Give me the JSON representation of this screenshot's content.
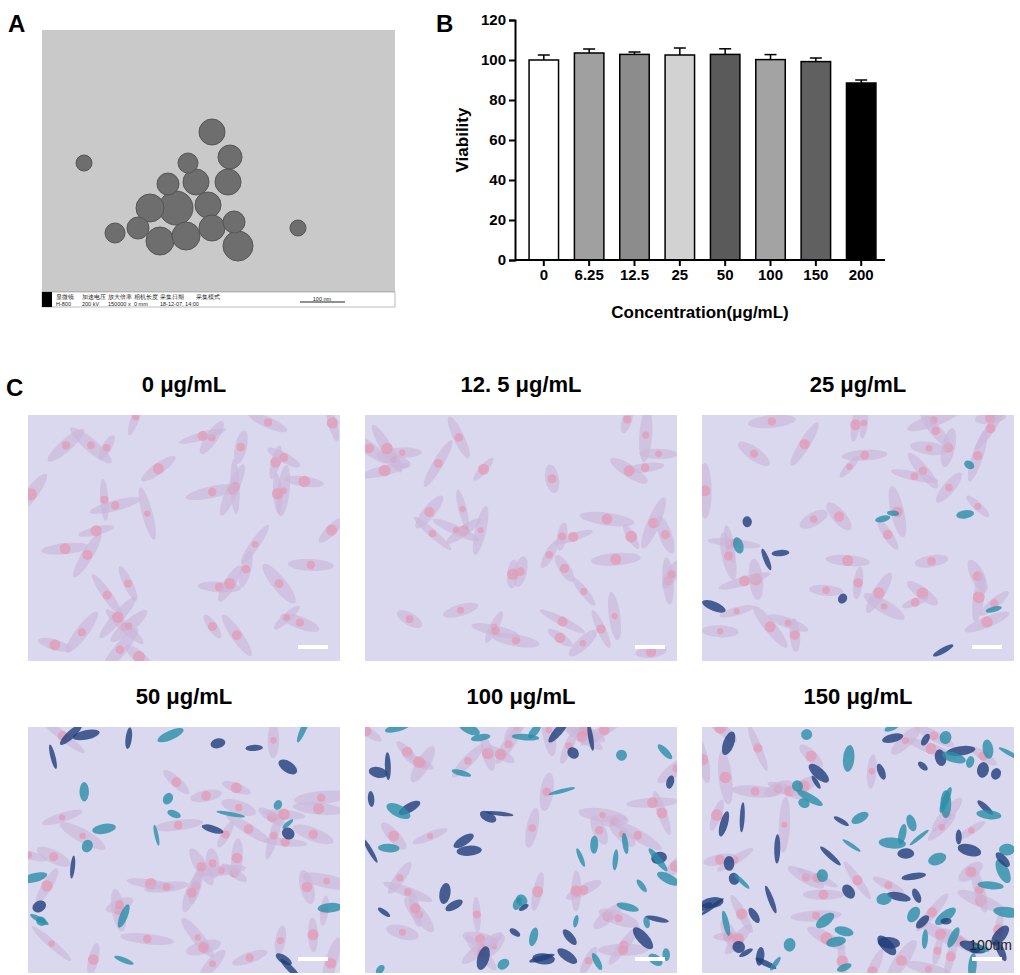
{
  "chart_data": {
    "type": "bar",
    "x_label": "Concentration(μg/mL)",
    "y_label": "Viability",
    "categories": [
      "0",
      "6.25",
      "12.5",
      "25",
      "50",
      "100",
      "150",
      "200"
    ],
    "values": [
      100,
      103.5,
      102.8,
      102.5,
      102.8,
      100.2,
      99.2,
      88.5
    ],
    "errors": [
      2.5,
      2,
      1.2,
      3.5,
      2.8,
      2.5,
      1.8,
      1.5
    ],
    "colors": [
      "#ffffff",
      "#a0a0a0",
      "#8c8c8c",
      "#d2d2d2",
      "#5a5a5a",
      "#a3a3a3",
      "#606060",
      "#000000"
    ],
    "ylim": [
      0,
      120
    ],
    "yticks": [
      0,
      20,
      40,
      60,
      80,
      100,
      120
    ],
    "grid": false
  },
  "figure": {
    "panel_labels": [
      "A",
      "B",
      "C"
    ],
    "tem": {
      "header_row": [
        "显微镜",
        "加速电压",
        "放大倍率",
        "相机长度",
        "采集日期",
        "采集模式"
      ],
      "value_row": [
        "H-800",
        "200 kV",
        "150000 x",
        "0 mm",
        "18-12-07, 14:00"
      ],
      "scale_label": "100 nm"
    },
    "micrographs": [
      {
        "title": "0 μg/mL"
      },
      {
        "title": "12. 5 μg/mL"
      },
      {
        "title": "25 μg/mL"
      },
      {
        "title": "50 μg/mL"
      },
      {
        "title": "100 μg/mL"
      },
      {
        "title": "150 μg/mL"
      }
    ],
    "scale_label": "100um"
  }
}
